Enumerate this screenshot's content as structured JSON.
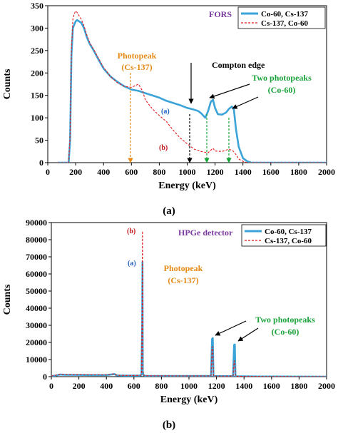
{
  "colors": {
    "series_a": "#3ba3d8",
    "series_b": "#e0191b",
    "photopeak_cs": "#e58a17",
    "photopeak_co": "#1aa33a",
    "detector_label": "#7a3aa0",
    "tag_a": "#2060c0",
    "tag_b": "#c0181b"
  },
  "chart_data": [
    {
      "type": "line",
      "panel_label": "(a)",
      "detector_label": "FORS",
      "xlabel": "Energy (keV)",
      "ylabel": "Counts",
      "xlim": [
        0,
        2000
      ],
      "ylim": [
        0,
        350
      ],
      "xticks": [
        "0",
        "200",
        "400",
        "600",
        "800",
        "1000",
        "1200",
        "1400",
        "1600",
        "1800",
        "2000"
      ],
      "yticks": [
        "0",
        "50",
        "100",
        "150",
        "200",
        "250",
        "300",
        "350"
      ],
      "grid": false,
      "legend_position": "top-right",
      "series": [
        {
          "name": "Co-60, Cs-137",
          "tag": "(a)",
          "style": "solid",
          "x": [
            70,
            150,
            160,
            170,
            180,
            190,
            200,
            210,
            220,
            240,
            260,
            280,
            300,
            330,
            360,
            400,
            450,
            500,
            550,
            600,
            650,
            700,
            750,
            800,
            850,
            900,
            950,
            1000,
            1050,
            1080,
            1100,
            1130,
            1150,
            1170,
            1185,
            1200,
            1220,
            1250,
            1280,
            1300,
            1320,
            1335,
            1350,
            1370,
            1400,
            1430,
            1460,
            1500,
            1600,
            1700,
            1800,
            1900,
            2000
          ],
          "y": [
            0,
            0,
            50,
            240,
            300,
            308,
            315,
            318,
            316,
            312,
            300,
            280,
            265,
            250,
            232,
            210,
            192,
            180,
            170,
            163,
            160,
            155,
            150,
            145,
            138,
            133,
            128,
            122,
            118,
            115,
            110,
            100,
            115,
            136,
            140,
            122,
            108,
            107,
            112,
            120,
            125,
            118,
            75,
            35,
            10,
            3,
            0,
            0,
            0,
            0,
            0,
            0,
            0
          ]
        },
        {
          "name": "Cs-137, Co-60",
          "tag": "(b)",
          "style": "dashed",
          "x": [
            70,
            150,
            160,
            170,
            180,
            190,
            200,
            210,
            220,
            240,
            260,
            280,
            300,
            330,
            360,
            400,
            450,
            500,
            550,
            600,
            650,
            680,
            700,
            750,
            800,
            850,
            900,
            950,
            1000,
            1050,
            1100,
            1150,
            1170,
            1185,
            1200,
            1250,
            1300,
            1330,
            1350,
            1370,
            1400,
            1430,
            1460,
            1500,
            1600,
            1700,
            1800,
            1900,
            2000
          ],
          "y": [
            0,
            0,
            60,
            250,
            320,
            332,
            338,
            335,
            330,
            320,
            305,
            285,
            268,
            252,
            235,
            212,
            192,
            178,
            170,
            168,
            175,
            160,
            140,
            120,
            105,
            92,
            72,
            55,
            42,
            30,
            25,
            22,
            28,
            32,
            26,
            25,
            30,
            26,
            18,
            8,
            3,
            0,
            0,
            0,
            0,
            0,
            0,
            0,
            0
          ]
        }
      ],
      "annotations": [
        {
          "text": [
            "Photopeak",
            "(Cs-137)"
          ],
          "kind": "photopeak_cs",
          "x": 660,
          "y_from": 150
        },
        {
          "text": [
            "Compton edge"
          ],
          "kind": "compton",
          "x": 1050,
          "y_from": 118
        },
        {
          "text": [
            "Two photopeaks",
            "(Co-60)"
          ],
          "kind": "photopeak_co",
          "x": [
            1170,
            1330
          ],
          "y_from": [
            136,
            120
          ]
        }
      ]
    },
    {
      "type": "line",
      "panel_label": "(b)",
      "detector_label": "HPGe detector",
      "xlabel": "Energy (keV)",
      "ylabel": "Counts",
      "xlim": [
        0,
        2000
      ],
      "ylim": [
        0,
        90000
      ],
      "xticks": [
        "0",
        "200",
        "400",
        "600",
        "800",
        "1000",
        "1200",
        "1400",
        "1600",
        "1800",
        "2000"
      ],
      "yticks": [
        "0",
        "10000",
        "20000",
        "30000",
        "40000",
        "50000",
        "60000",
        "70000",
        "80000",
        "90000"
      ],
      "grid": false,
      "legend_position": "top-right",
      "series": [
        {
          "name": "Co-60, Cs-137",
          "tag": "(a)",
          "style": "solid",
          "x": [
            0,
            30,
            60,
            100,
            200,
            300,
            400,
            460,
            470,
            480,
            500,
            550,
            600,
            640,
            650,
            655,
            660,
            662,
            664,
            670,
            680,
            700,
            800,
            900,
            1000,
            1100,
            1160,
            1168,
            1173,
            1178,
            1190,
            1250,
            1320,
            1328,
            1333,
            1338,
            1350,
            1400,
            1500,
            1600,
            1800,
            2000
          ],
          "y": [
            300,
            600,
            1200,
            1100,
            1000,
            900,
            900,
            1500,
            900,
            700,
            650,
            600,
            600,
            600,
            700,
            1200,
            30000,
            67000,
            3000,
            800,
            500,
            400,
            400,
            400,
            400,
            400,
            400,
            22000,
            22500,
            400,
            300,
            300,
            300,
            18500,
            18800,
            300,
            200,
            150,
            100,
            80,
            50,
            0
          ]
        },
        {
          "name": "Cs-137, Co-60",
          "tag": "(b)",
          "style": "dashed",
          "x": [
            0,
            30,
            60,
            100,
            200,
            300,
            400,
            460,
            470,
            480,
            500,
            550,
            600,
            640,
            650,
            655,
            660,
            662,
            664,
            670,
            680,
            700,
            800,
            900,
            1000,
            1100,
            1160,
            1168,
            1173,
            1178,
            1190,
            1250,
            1320,
            1328,
            1333,
            1338,
            1350,
            1400,
            1500,
            1600,
            1800,
            2000
          ],
          "y": [
            400,
            800,
            1400,
            1300,
            1200,
            1100,
            1000,
            1700,
            1000,
            800,
            700,
            650,
            650,
            650,
            800,
            1500,
            40000,
            85000,
            3500,
            900,
            600,
            500,
            500,
            450,
            450,
            450,
            450,
            17000,
            17500,
            450,
            350,
            350,
            350,
            9000,
            9200,
            350,
            250,
            180,
            120,
            90,
            60,
            0
          ]
        }
      ],
      "annotations": [
        {
          "text": [
            "Photopeak",
            "(Cs-137)"
          ],
          "kind": "photopeak_cs",
          "x": 662
        },
        {
          "text": [
            "Two photopeaks",
            "(Co-60)"
          ],
          "kind": "photopeak_co",
          "x": [
            1173,
            1333
          ]
        }
      ]
    }
  ],
  "captions": {
    "a": "(a)",
    "b": "(b)"
  }
}
